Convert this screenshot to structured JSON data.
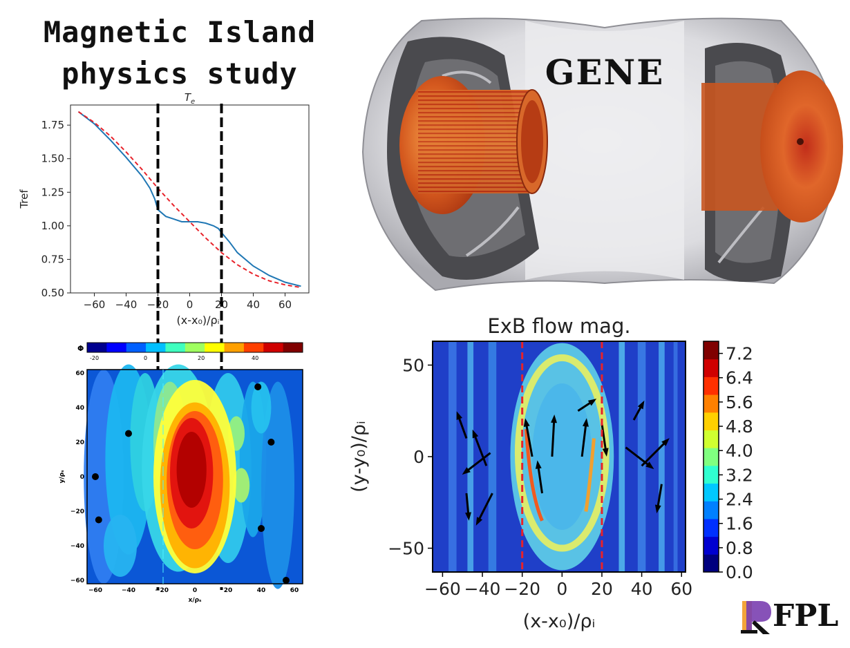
{
  "heading": {
    "line1": "Magnetic Island",
    "line2": "physics study"
  },
  "gene_label": "GENE",
  "logo": {
    "text": "FPL",
    "colors": [
      "#f2a43a",
      "#7a3fb0"
    ]
  },
  "chart_data": [
    {
      "type": "line",
      "title": "T_e",
      "title_main": "T",
      "title_sub": "e",
      "ylabel": "Tref",
      "xlabel": "(x-x₀)/ρᵢ",
      "xlim": [
        -75,
        75
      ],
      "ylim": [
        0.5,
        1.9
      ],
      "xticks": [
        -60,
        -40,
        -20,
        0,
        20,
        40,
        60
      ],
      "yticks": [
        0.5,
        0.75,
        1.0,
        1.25,
        1.5,
        1.75
      ],
      "ytick_labels": [
        "0.50",
        "0.75",
        "1.00",
        "1.25",
        "1.50",
        "1.75"
      ],
      "vlines": [
        -20,
        20
      ],
      "series": [
        {
          "style": "solid",
          "color": "#1f77b4",
          "x": [
            -70,
            -60,
            -50,
            -40,
            -30,
            -25,
            -22,
            -20,
            -15,
            -10,
            -5,
            0,
            5,
            10,
            15,
            18,
            20,
            25,
            30,
            40,
            50,
            60,
            70
          ],
          "y": [
            1.85,
            1.76,
            1.64,
            1.51,
            1.37,
            1.28,
            1.2,
            1.12,
            1.07,
            1.05,
            1.03,
            1.03,
            1.03,
            1.02,
            1.0,
            0.98,
            0.95,
            0.88,
            0.8,
            0.7,
            0.63,
            0.58,
            0.55
          ]
        },
        {
          "style": "dashed",
          "color": "#e8222a",
          "x": [
            -70,
            -60,
            -50,
            -40,
            -30,
            -20,
            -10,
            0,
            10,
            20,
            30,
            40,
            50,
            60,
            70
          ],
          "y": [
            1.85,
            1.77,
            1.67,
            1.55,
            1.42,
            1.28,
            1.15,
            1.03,
            0.91,
            0.8,
            0.71,
            0.64,
            0.59,
            0.56,
            0.54
          ]
        }
      ]
    },
    {
      "type": "heatmap",
      "colorbar_label": "Φ",
      "xlabel": "x/ρₛ",
      "ylabel": "y/ρₛ",
      "xlim": [
        -65,
        65
      ],
      "ylim": [
        -62,
        62
      ],
      "xticks": [
        -60,
        -40,
        -20,
        0,
        20,
        40,
        60
      ],
      "yticks": [
        -60,
        -40,
        -20,
        0,
        20,
        40,
        60
      ],
      "colorbar_ticks": [
        "-20",
        "0",
        "20",
        "40"
      ],
      "vlines": [
        -20,
        18
      ]
    },
    {
      "type": "heatmap",
      "title": "ExB flow mag.",
      "xlabel": "(x-x₀)/ρᵢ",
      "ylabel": "(y-y₀)/ρᵢ",
      "xlim": [
        -65,
        62
      ],
      "ylim": [
        -63,
        63
      ],
      "xticks": [
        -60,
        -40,
        -20,
        0,
        20,
        40,
        60
      ],
      "yticks": [
        -50,
        0,
        50
      ],
      "colorbar_ticks": [
        "0.0",
        "0.8",
        "1.6",
        "2.4",
        "3.2",
        "4.0",
        "4.8",
        "5.6",
        "6.4",
        "7.2"
      ],
      "colorbar_range": [
        0,
        7.6
      ],
      "vlines": [
        -20,
        20
      ]
    }
  ]
}
